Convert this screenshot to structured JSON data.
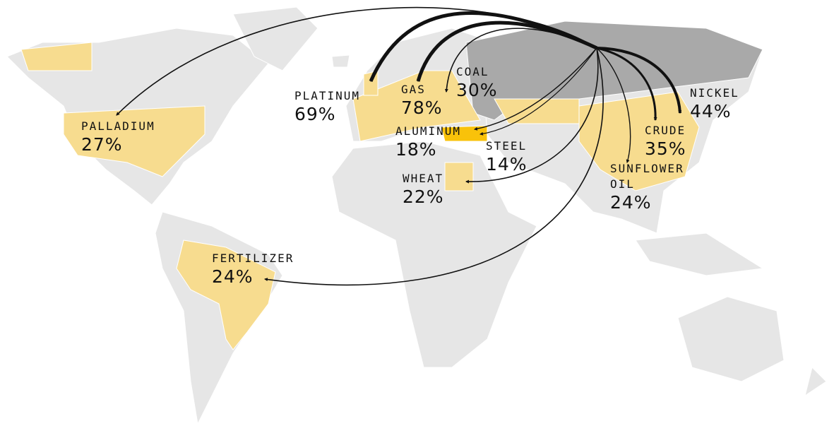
{
  "flows": [
    {
      "commodity": "PALLADIUM",
      "share": "27%"
    },
    {
      "commodity": "PLATINUM",
      "share": "69%"
    },
    {
      "commodity": "GAS",
      "share": "78%"
    },
    {
      "commodity": "COAL",
      "share": "30%"
    },
    {
      "commodity": "ALUMINUM",
      "share": "18%"
    },
    {
      "commodity": "STEEL",
      "share": "14%"
    },
    {
      "commodity": "WHEAT",
      "share": "22%"
    },
    {
      "commodity": "FERTILIZER",
      "share": "24%"
    },
    {
      "commodity": "NICKEL",
      "share": "44%"
    },
    {
      "commodity": "CRUDE",
      "share": "35%"
    },
    {
      "commodity": "SUNFLOWER OIL",
      "share": "24%"
    }
  ]
}
